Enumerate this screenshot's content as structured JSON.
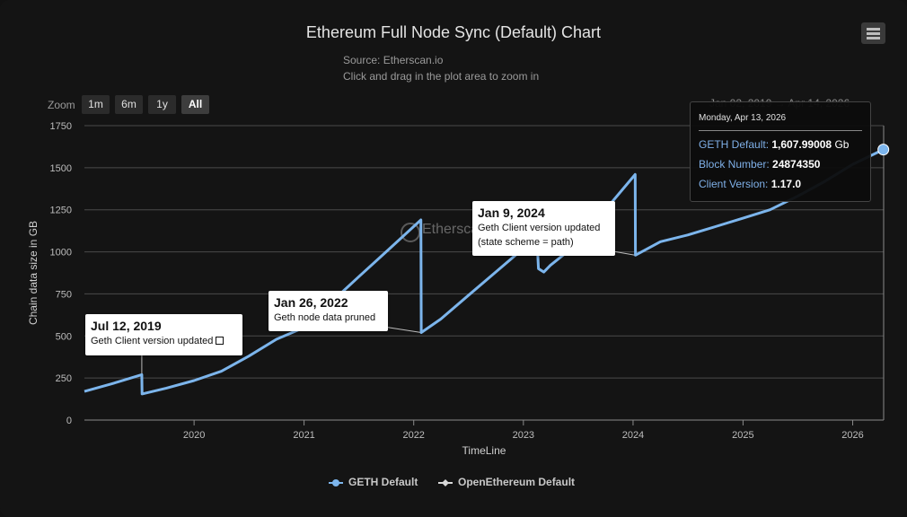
{
  "header": {
    "title": "Ethereum Full Node Sync (Default) Chart",
    "source": "Source: Etherscan.io",
    "hint": "Click and drag in the plot area to zoom in"
  },
  "zoom": {
    "label": "Zoom",
    "buttons": [
      "1m",
      "6m",
      "1y",
      "All"
    ],
    "active": "All",
    "range_text": "Jan 02, 2019   →   Apr 14, 2026"
  },
  "watermark": "Etherscan",
  "annotations": [
    {
      "date": "Jul 12, 2019",
      "lines": [
        "Geth Client version updated"
      ],
      "external_link": true
    },
    {
      "date": "Jan 26, 2022",
      "lines": [
        "Geth node data pruned"
      ],
      "external_link": false
    },
    {
      "date": "Jan 9, 2024",
      "lines": [
        "Geth Client version updated",
        "(state scheme = path)"
      ],
      "external_link": false
    }
  ],
  "tooltip": {
    "date": "Monday, Apr 13, 2026",
    "series_label": "GETH Default",
    "series_value": "1,607.99008",
    "series_unit": "Gb",
    "block_label": "Block Number",
    "block_value": "24874350",
    "client_label": "Client Version",
    "client_value": "1.17.0"
  },
  "colors": {
    "geth": "#7cb5ec",
    "openethereum": "#d9d9d9",
    "grid": "#4a4a4a",
    "background": "#141414"
  },
  "chart_data": {
    "type": "line",
    "title": "Ethereum Full Node Sync (Default) Chart",
    "xlabel": "TimeLine",
    "ylabel": "Chain data size in GB",
    "ylim": [
      0,
      1750
    ],
    "xlim": [
      "2019-01-01",
      "2026-04-14"
    ],
    "y_ticks": [
      0,
      250,
      500,
      750,
      1000,
      1250,
      1500,
      1750
    ],
    "x_ticks": [
      "2020",
      "2021",
      "2022",
      "2023",
      "2024",
      "2025",
      "2026"
    ],
    "grid": true,
    "legend_position": "bottom-center",
    "series": [
      {
        "name": "GETH Default",
        "points": [
          [
            "2019-01-01",
            170
          ],
          [
            "2019-04-01",
            215
          ],
          [
            "2019-07-11",
            270
          ],
          [
            "2019-07-12",
            155
          ],
          [
            "2019-10-01",
            190
          ],
          [
            "2020-01-01",
            235
          ],
          [
            "2020-04-01",
            290
          ],
          [
            "2020-07-01",
            380
          ],
          [
            "2020-10-01",
            480
          ],
          [
            "2021-01-01",
            550
          ],
          [
            "2021-04-01",
            700
          ],
          [
            "2021-07-01",
            850
          ],
          [
            "2021-10-01",
            1000
          ],
          [
            "2022-01-25",
            1190
          ],
          [
            "2022-01-26",
            520
          ],
          [
            "2022-04-01",
            600
          ],
          [
            "2022-07-01",
            740
          ],
          [
            "2022-10-01",
            880
          ],
          [
            "2023-01-01",
            1020
          ],
          [
            "2023-02-15",
            1080
          ],
          [
            "2023-02-20",
            900
          ],
          [
            "2023-03-10",
            880
          ],
          [
            "2023-04-01",
            920
          ],
          [
            "2023-07-01",
            1050
          ],
          [
            "2023-10-01",
            1250
          ],
          [
            "2024-01-08",
            1460
          ],
          [
            "2024-01-09",
            980
          ],
          [
            "2024-04-01",
            1060
          ],
          [
            "2024-07-01",
            1100
          ],
          [
            "2024-10-01",
            1150
          ],
          [
            "2025-01-01",
            1200
          ],
          [
            "2025-04-01",
            1250
          ],
          [
            "2025-07-01",
            1330
          ],
          [
            "2025-10-01",
            1420
          ],
          [
            "2026-01-01",
            1520
          ],
          [
            "2026-04-13",
            1607.99008
          ]
        ]
      },
      {
        "name": "OpenEthereum Default",
        "points": []
      }
    ]
  }
}
